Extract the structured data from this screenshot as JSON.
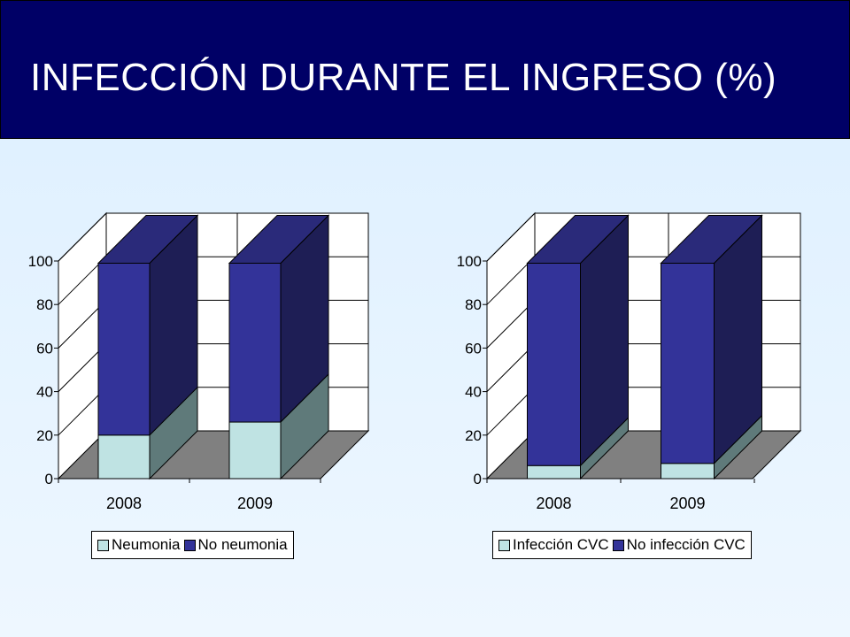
{
  "slide": {
    "title": "INFECCIÓN DURANTE EL INGRESO (%)"
  },
  "colors": {
    "header_bg": "#000066",
    "series_bottom": "#bfe3e3",
    "series_top": "#333399",
    "floor": "#808080"
  },
  "chart_data": [
    {
      "type": "bar",
      "stacked": true,
      "three_d": true,
      "categories": [
        "2008",
        "2009"
      ],
      "series": [
        {
          "name": "Neumonia",
          "values": [
            20,
            26
          ]
        },
        {
          "name": "No neumonia",
          "values": [
            79,
            73
          ]
        }
      ],
      "y_ticks": [
        "0",
        "20",
        "40",
        "60",
        "80",
        "100"
      ],
      "ylim": [
        0,
        100
      ],
      "grid": true,
      "legend_position": "bottom",
      "title": "",
      "xlabel": "",
      "ylabel": ""
    },
    {
      "type": "bar",
      "stacked": true,
      "three_d": true,
      "categories": [
        "2008",
        "2009"
      ],
      "series": [
        {
          "name": "Infección CVC",
          "values": [
            6,
            7
          ]
        },
        {
          "name": "No infección CVC",
          "values": [
            93,
            92
          ]
        }
      ],
      "y_ticks": [
        "0",
        "20",
        "40",
        "60",
        "80",
        "100"
      ],
      "ylim": [
        0,
        100
      ],
      "grid": true,
      "legend_position": "bottom",
      "title": "",
      "xlabel": "",
      "ylabel": ""
    }
  ]
}
